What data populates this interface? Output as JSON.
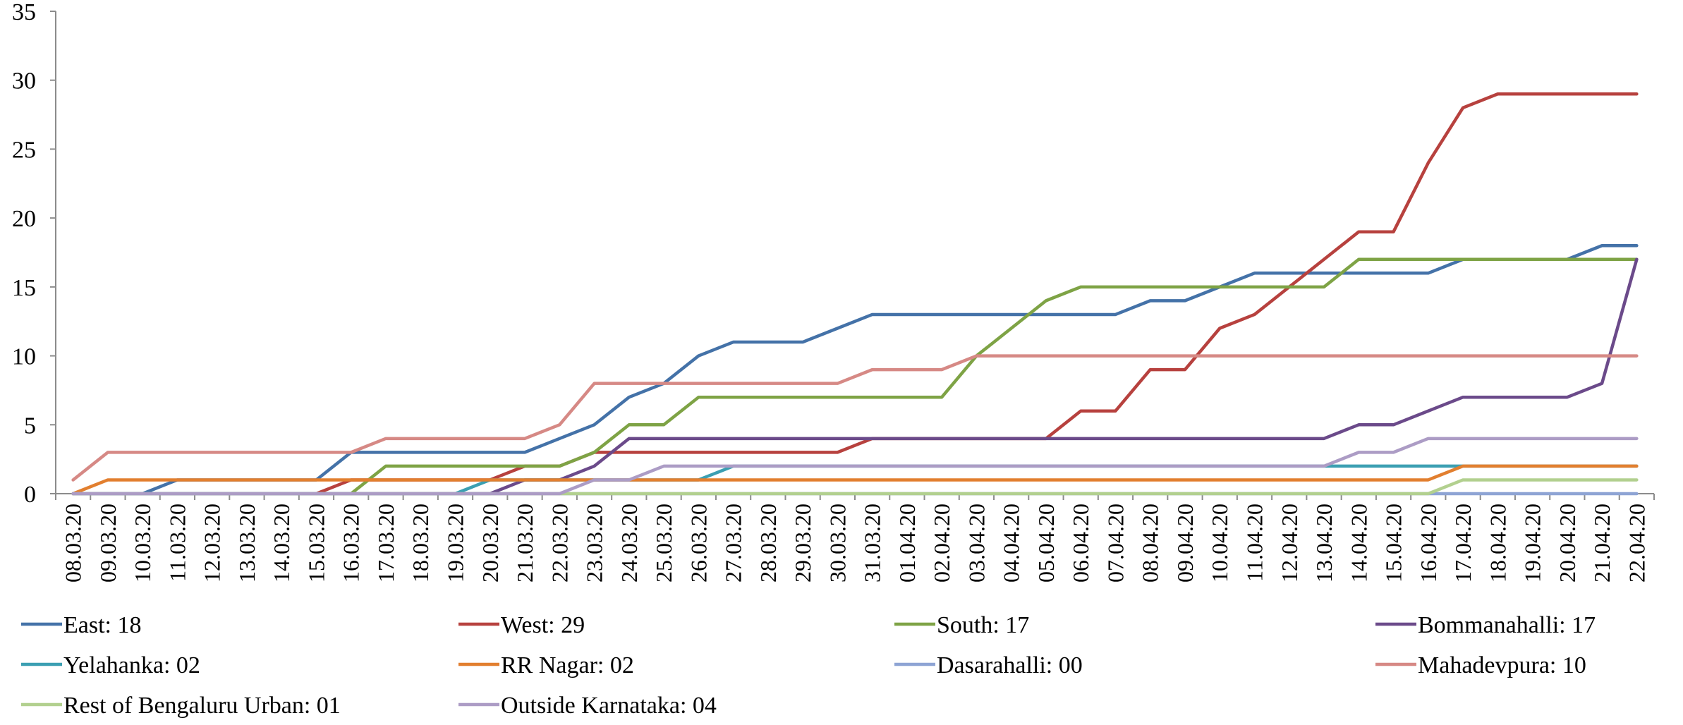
{
  "chart_data": {
    "type": "line",
    "ylim": [
      0,
      35
    ],
    "yticks": [
      0,
      5,
      10,
      15,
      20,
      25,
      30,
      35
    ],
    "grid": false,
    "legend_position": "bottom",
    "x": [
      "08.03.20",
      "09.03.20",
      "10.03.20",
      "11.03.20",
      "12.03.20",
      "13.03.20",
      "14.03.20",
      "15.03.20",
      "16.03.20",
      "17.03.20",
      "18.03.20",
      "19.03.20",
      "20.03.20",
      "21.03.20",
      "22.03.20",
      "23.03.20",
      "24.03.20",
      "25.03.20",
      "26.03.20",
      "27.03.20",
      "28.03.20",
      "29.03.20",
      "30.03.20",
      "31.03.20",
      "01.04.20",
      "02.04.20",
      "03.04.20",
      "04.04.20",
      "05.04.20",
      "06.04.20",
      "07.04.20",
      "08.04.20",
      "09.04.20",
      "10.04.20",
      "11.04.20",
      "12.04.20",
      "13.04.20",
      "14.04.20",
      "15.04.20",
      "16.04.20",
      "17.04.20",
      "18.04.20",
      "19.04.20",
      "20.04.20",
      "21.04.20",
      "22.04.20"
    ],
    "series": [
      {
        "name": "East: 18",
        "color": "#4472a8",
        "values": [
          0,
          0,
          0,
          1,
          1,
          1,
          1,
          1,
          3,
          3,
          3,
          3,
          3,
          3,
          4,
          5,
          7,
          8,
          10,
          11,
          11,
          11,
          12,
          13,
          13,
          13,
          13,
          13,
          13,
          13,
          13,
          14,
          14,
          15,
          16,
          16,
          16,
          16,
          16,
          16,
          17,
          17,
          17,
          17,
          18,
          18
        ]
      },
      {
        "name": "West: 29",
        "color": "#b7413e",
        "values": [
          0,
          0,
          0,
          0,
          0,
          0,
          0,
          0,
          1,
          1,
          1,
          1,
          1,
          2,
          2,
          3,
          3,
          3,
          3,
          3,
          3,
          3,
          3,
          4,
          4,
          4,
          4,
          4,
          4,
          6,
          6,
          9,
          9,
          12,
          13,
          15,
          17,
          19,
          19,
          24,
          28,
          29,
          29,
          29,
          29,
          29
        ]
      },
      {
        "name": "South: 17",
        "color": "#7ea345",
        "values": [
          0,
          0,
          0,
          0,
          0,
          0,
          0,
          0,
          0,
          2,
          2,
          2,
          2,
          2,
          2,
          3,
          5,
          5,
          7,
          7,
          7,
          7,
          7,
          7,
          7,
          7,
          10,
          12,
          14,
          15,
          15,
          15,
          15,
          15,
          15,
          15,
          15,
          17,
          17,
          17,
          17,
          17,
          17,
          17,
          17,
          17
        ]
      },
      {
        "name": "Bommanahalli: 17",
        "color": "#6b4a8a",
        "values": [
          0,
          0,
          0,
          0,
          0,
          0,
          0,
          0,
          0,
          0,
          0,
          0,
          0,
          1,
          1,
          2,
          4,
          4,
          4,
          4,
          4,
          4,
          4,
          4,
          4,
          4,
          4,
          4,
          4,
          4,
          4,
          4,
          4,
          4,
          4,
          4,
          4,
          5,
          5,
          6,
          7,
          7,
          7,
          7,
          8,
          17
        ]
      },
      {
        "name": "Yelahanka: 02",
        "color": "#3b9fb2",
        "values": [
          0,
          0,
          0,
          0,
          0,
          0,
          0,
          0,
          0,
          0,
          0,
          0,
          1,
          1,
          1,
          1,
          1,
          1,
          1,
          2,
          2,
          2,
          2,
          2,
          2,
          2,
          2,
          2,
          2,
          2,
          2,
          2,
          2,
          2,
          2,
          2,
          2,
          2,
          2,
          2,
          2,
          2,
          2,
          2,
          2,
          2
        ]
      },
      {
        "name": "RR Nagar: 02",
        "color": "#e27f2f",
        "values": [
          0,
          1,
          1,
          1,
          1,
          1,
          1,
          1,
          1,
          1,
          1,
          1,
          1,
          1,
          1,
          1,
          1,
          1,
          1,
          1,
          1,
          1,
          1,
          1,
          1,
          1,
          1,
          1,
          1,
          1,
          1,
          1,
          1,
          1,
          1,
          1,
          1,
          1,
          1,
          1,
          2,
          2,
          2,
          2,
          2,
          2
        ]
      },
      {
        "name": "Dasarahalli: 00",
        "color": "#8ea4d4",
        "values": [
          0,
          0,
          0,
          0,
          0,
          0,
          0,
          0,
          0,
          0,
          0,
          0,
          0,
          0,
          0,
          0,
          0,
          0,
          0,
          0,
          0,
          0,
          0,
          0,
          0,
          0,
          0,
          0,
          0,
          0,
          0,
          0,
          0,
          0,
          0,
          0,
          0,
          0,
          0,
          0,
          0,
          0,
          0,
          0,
          0,
          0
        ]
      },
      {
        "name": "Mahadevpura: 10",
        "color": "#d68985",
        "values": [
          1,
          3,
          3,
          3,
          3,
          3,
          3,
          3,
          3,
          4,
          4,
          4,
          4,
          4,
          5,
          8,
          8,
          8,
          8,
          8,
          8,
          8,
          8,
          9,
          9,
          9,
          10,
          10,
          10,
          10,
          10,
          10,
          10,
          10,
          10,
          10,
          10,
          10,
          10,
          10,
          10,
          10,
          10,
          10,
          10,
          10
        ]
      },
      {
        "name": "Rest of Bengaluru Urban: 01",
        "color": "#b2d08f",
        "values": [
          0,
          0,
          0,
          0,
          0,
          0,
          0,
          0,
          0,
          0,
          0,
          0,
          0,
          0,
          0,
          0,
          0,
          0,
          0,
          0,
          0,
          0,
          0,
          0,
          0,
          0,
          0,
          0,
          0,
          0,
          0,
          0,
          0,
          0,
          0,
          0,
          0,
          0,
          0,
          0,
          1,
          1,
          1,
          1,
          1,
          1
        ]
      },
      {
        "name": "Outside Karnataka: 04",
        "color": "#ac9cc5",
        "values": [
          0,
          0,
          0,
          0,
          0,
          0,
          0,
          0,
          0,
          0,
          0,
          0,
          0,
          0,
          0,
          1,
          1,
          2,
          2,
          2,
          2,
          2,
          2,
          2,
          2,
          2,
          2,
          2,
          2,
          2,
          2,
          2,
          2,
          2,
          2,
          2,
          2,
          3,
          3,
          4,
          4,
          4,
          4,
          4,
          4,
          4
        ]
      }
    ]
  }
}
